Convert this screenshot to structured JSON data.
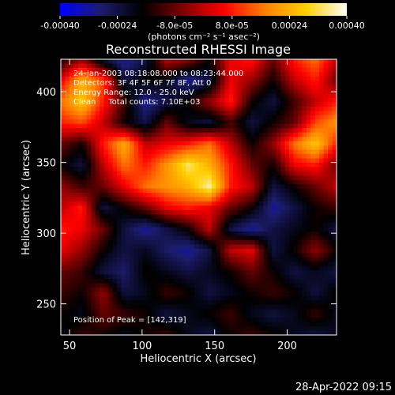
{
  "chart_data": {
    "type": "heatmap",
    "title": "Reconstructed RHESSI Image",
    "xlabel": "Heliocentric X (arcsec)",
    "ylabel": "Heliocentric Y (arcsec)",
    "xlim": [
      44,
      234
    ],
    "ylim": [
      228,
      423
    ],
    "x_ticks": [
      50,
      100,
      150,
      200
    ],
    "y_ticks": [
      250,
      300,
      350,
      400
    ],
    "colorbar": {
      "min": -0.0004,
      "max": 0.0004,
      "tick_values": [
        -0.0004,
        -0.00024,
        -8e-05,
        8e-05,
        0.00024,
        0.0004
      ],
      "tick_labels": [
        "-0.00040",
        "-0.00024",
        "-8.0e-05",
        "8.0e-05",
        "0.00024",
        "0.00040"
      ],
      "unit_label": "(photons cm⁻² s⁻¹ asec⁻²)",
      "colormap": [
        "#0000ff",
        "#1c1c6e",
        "#000000",
        "#800000",
        "#ff0000",
        "#ff8000",
        "#ffd000",
        "#ffffff"
      ]
    },
    "annotations": {
      "time_range": "24-Jan-2003 08:18:08.000 to 08:23:44.000",
      "detectors": "Detectors: 3F 4F 5F 6F 7F 8F, Att 0",
      "energy": "Energy Range: 12.0 - 25.0 keV",
      "method": "Clean     Total counts: 7.10E+03",
      "peak": "Position of Peak = [142,319]"
    },
    "peak": [
      142,
      319
    ],
    "intensity_grid_x_range": [
      44,
      234
    ],
    "intensity_grid_y_range": [
      228,
      423
    ],
    "intensity_grid": [
      [
        0.3,
        0.45,
        0.2,
        0.1,
        0.2,
        0.5,
        0.45,
        0.3,
        0.55,
        0.6,
        0.4,
        0.6,
        0.7,
        0.5
      ],
      [
        0.55,
        0.8,
        0.65,
        0.2,
        0.3,
        0.25,
        0.1,
        0.2,
        0.55,
        0.45,
        0.3,
        0.5,
        0.6,
        0.4
      ],
      [
        0.7,
        0.85,
        0.6,
        0.35,
        0.1,
        0.2,
        0.3,
        0.45,
        0.6,
        0.3,
        0.2,
        0.35,
        0.5,
        0.6
      ],
      [
        0.6,
        0.65,
        0.5,
        0.3,
        0.2,
        0.4,
        0.25,
        0.2,
        0.35,
        0.2,
        0.3,
        0.4,
        0.65,
        0.75
      ],
      [
        0.4,
        0.3,
        0.6,
        0.8,
        0.5,
        0.55,
        0.6,
        0.7,
        0.5,
        0.3,
        0.45,
        0.7,
        0.85,
        0.6
      ],
      [
        0.3,
        0.2,
        0.5,
        0.7,
        0.6,
        0.75,
        0.92,
        0.8,
        0.6,
        0.4,
        0.3,
        0.55,
        0.6,
        0.4
      ],
      [
        0.45,
        0.35,
        0.4,
        0.55,
        0.7,
        0.75,
        0.8,
        0.95,
        0.6,
        0.5,
        0.2,
        0.3,
        0.4,
        0.5
      ],
      [
        0.5,
        0.6,
        0.2,
        0.3,
        0.4,
        0.55,
        0.6,
        0.55,
        0.4,
        0.3,
        0.1,
        0.2,
        0.3,
        0.35
      ],
      [
        0.6,
        0.55,
        0.4,
        0.2,
        0.1,
        0.2,
        0.3,
        0.5,
        0.2,
        0.1,
        0.2,
        0.25,
        0.3,
        0.2
      ],
      [
        0.55,
        0.45,
        0.3,
        0.2,
        0.25,
        0.15,
        0.1,
        0.2,
        0.5,
        0.55,
        0.2,
        0.3,
        0.45,
        0.3
      ],
      [
        0.4,
        0.35,
        0.2,
        0.15,
        0.3,
        0.25,
        0.2,
        0.25,
        0.3,
        0.4,
        0.3,
        0.2,
        0.25,
        0.2
      ],
      [
        0.35,
        0.3,
        0.45,
        0.2,
        0.25,
        0.35,
        0.3,
        0.2,
        0.25,
        0.3,
        0.35,
        0.3,
        0.2,
        0.3
      ],
      [
        0.3,
        0.25,
        0.4,
        0.35,
        0.3,
        0.2,
        0.25,
        0.3,
        0.35,
        0.25,
        0.2,
        0.25,
        0.35,
        0.25
      ],
      [
        0.25,
        0.35,
        0.3,
        0.25,
        0.3,
        0.35,
        0.25,
        0.2,
        0.3,
        0.35,
        0.3,
        0.25,
        0.2,
        0.25
      ]
    ]
  },
  "footer": {
    "timestamp": "28-Apr-2022 09:15"
  }
}
